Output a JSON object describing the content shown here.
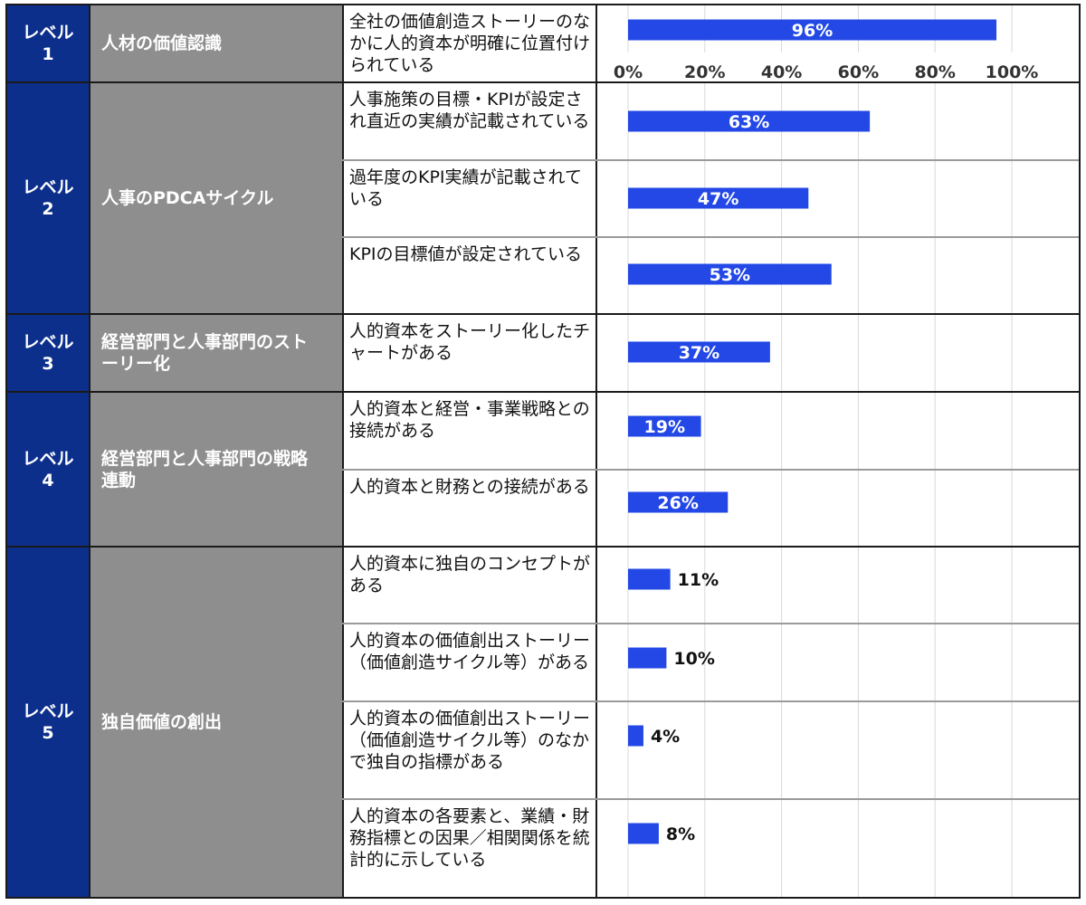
{
  "colors": {
    "level_bg": "#0d2f8c",
    "category_bg": "#8e8e8e",
    "bar": "#2348e6",
    "grid": "#d9d9d9"
  },
  "levels": [
    {
      "label": "レベル",
      "num": "1",
      "category": "人材の価値認識"
    },
    {
      "label": "レベル",
      "num": "2",
      "category": "人事のPDCAサイクル"
    },
    {
      "label": "レベル",
      "num": "3",
      "category": "経営部門と人事部門のストーリー化"
    },
    {
      "label": "レベル",
      "num": "4",
      "category": "経営部門と人事部門の戦略連動"
    },
    {
      "label": "レベル",
      "num": "5",
      "category": "独自価値の創出"
    }
  ],
  "items": [
    "全社の価値創造ストーリーのなかに人的資本が明確に位置付けられている",
    "人事施策の目標・KPIが設定され直近の実績が記載されている",
    "過年度のKPI実績が記載されている",
    "KPIの目標値が設定されている",
    "人的資本をストーリー化したチャートがある",
    "人的資本と経営・事業戦略との接続がある",
    "人的資本と財務との接続がある",
    "人的資本に独自のコンセプトがある",
    "人的資本の価値創出ストーリー（価値創造サイクル等）がある",
    "人的資本の価値創出ストーリー（価値創造サイクル等）のなかで独自の指標がある",
    "人的資本の各要素と、業績・財務指標との因果／相関関係を統計的に示している"
  ],
  "chart_data": {
    "type": "bar",
    "orientation": "horizontal",
    "categories": [
      "全社の価値創造ストーリーのなかに人的資本が明確に位置付けられている",
      "人事施策の目標・KPIが設定され直近の実績が記載されている",
      "過年度のKPI実績が記載されている",
      "KPIの目標値が設定されている",
      "人的資本をストーリー化したチャートがある",
      "人的資本と経営・事業戦略との接続がある",
      "人的資本と財務との接続がある",
      "人的資本に独自のコンセプトがある",
      "人的資本の価値創出ストーリー（価値創造サイクル等）がある",
      "人的資本の価値創出ストーリー（価値創造サイクル等）のなかで独自の指標がある",
      "人的資本の各要素と、業績・財務指標との因果／相関関係を統計的に示している"
    ],
    "values": [
      96,
      63,
      47,
      53,
      37,
      19,
      26,
      11,
      10,
      4,
      8
    ],
    "value_labels": [
      "96%",
      "63%",
      "47%",
      "53%",
      "37%",
      "19%",
      "26%",
      "11%",
      "10%",
      "4%",
      "8%"
    ],
    "xlim": [
      0,
      100
    ],
    "ticks": [
      0,
      20,
      40,
      60,
      80,
      100
    ],
    "tick_labels": [
      "0%",
      "20%",
      "40%",
      "60%",
      "80%",
      "100%"
    ],
    "grid": true,
    "title": "",
    "xlabel": "",
    "ylabel": ""
  }
}
